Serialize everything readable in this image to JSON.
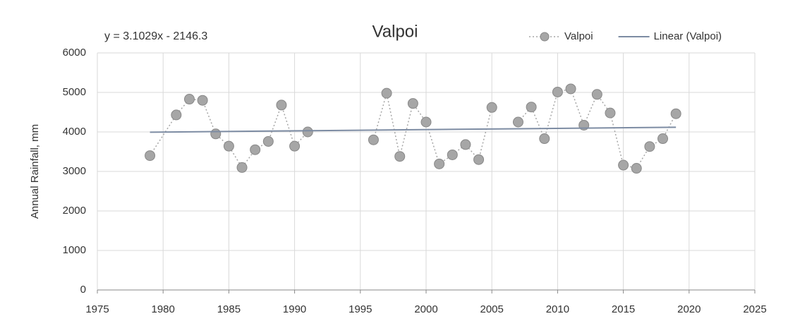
{
  "chart_data": {
    "type": "scatter",
    "title": "Valpoi",
    "annotation": "y = 3.1029x - 2146.3",
    "y_label": "Annual Rainfall, mm",
    "xlim": [
      1975,
      2025
    ],
    "xticks": [
      1975,
      1980,
      1985,
      1990,
      1995,
      2000,
      2005,
      2010,
      2015,
      2020,
      2025
    ],
    "ylim": [
      0,
      6000
    ],
    "yticks": [
      0,
      1000,
      2000,
      3000,
      4000,
      5000,
      6000
    ],
    "grid": true,
    "legend": "top-right",
    "series": [
      {
        "name": "Valpoi",
        "color": "#a6a6a6",
        "x": [
          1979,
          1981,
          1982,
          1983,
          1984,
          1985,
          1986,
          1987,
          1988,
          1989,
          1990,
          1991,
          1992,
          1993,
          1994,
          1995,
          1996,
          1997,
          1998,
          1999,
          2000,
          2001,
          2002,
          2003,
          2004,
          2005,
          2006,
          2007,
          2008,
          2009,
          2010,
          2011,
          2012,
          2013,
          2014,
          2015,
          2016,
          2017,
          2018,
          2019
        ],
        "values": [
          3400,
          4430,
          4830,
          4800,
          3950,
          3640,
          3100,
          3550,
          3760,
          4680,
          3640,
          4000,
          null,
          null,
          null,
          null,
          3800,
          4980,
          3380,
          4720,
          4250,
          3190,
          3420,
          3680,
          3300,
          4620,
          null,
          4250,
          4630,
          3830,
          5010,
          5090,
          4170,
          4950,
          4480,
          3160,
          3080,
          3630,
          3830,
          4460
        ]
      },
      {
        "name": "Linear (Valpoi)",
        "color": "#7d8ca3",
        "x": [
          1979,
          2019
        ],
        "values": [
          3994,
          4118
        ]
      }
    ]
  }
}
